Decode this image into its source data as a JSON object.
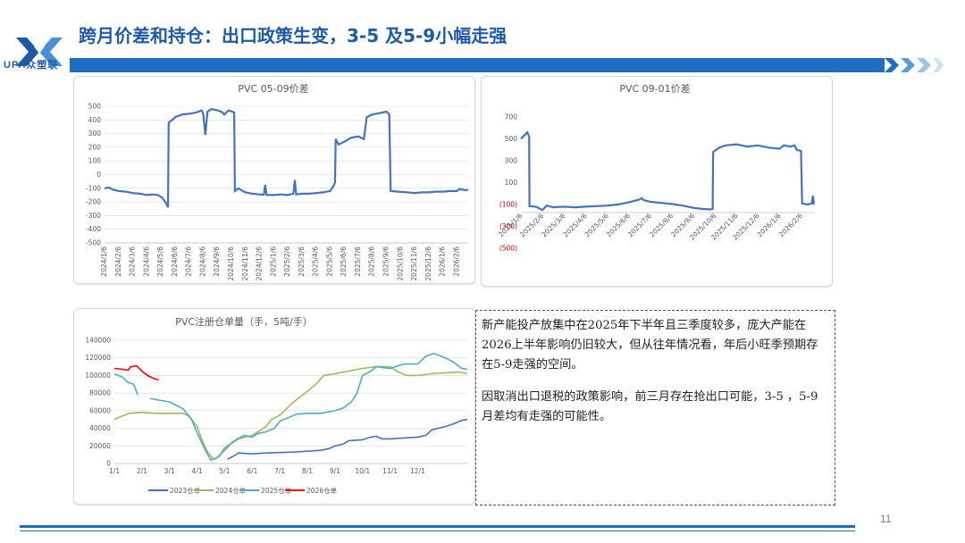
{
  "header": {
    "title": "跨月价差和持仓：出口政策生变，3-5 及5-9小幅走强",
    "logo_text": "UPA众塑联",
    "accent_color": "#1f6cc0"
  },
  "chart_data": [
    {
      "type": "line",
      "title": "PVC 05-09价差",
      "xlabel": "",
      "ylabel": "",
      "ylim": [
        -500,
        500
      ],
      "yticks": [
        "500",
        "400",
        "300",
        "200",
        "100",
        "0",
        "-100",
        "-200",
        "-300",
        "-400",
        "-500"
      ],
      "categories": [
        "2024/1/6",
        "2024/2/6",
        "2024/3/6",
        "2024/4/6",
        "2024/5/6",
        "2024/6/6",
        "2024/7/6",
        "2024/8/6",
        "2024/9/6",
        "2024/10/6",
        "2024/11/6",
        "2024/12/6",
        "2025/1/6",
        "2025/2/6",
        "2025/3/6",
        "2025/4/6",
        "2025/5/6",
        "2025/6/6",
        "2025/7/6",
        "2025/8/6",
        "2025/9/6",
        "2025/10/6",
        "2025/11/6",
        "2025/12/6",
        "2026/1/6",
        "2026/2/6"
      ],
      "series": [
        {
          "color": "#4472c4",
          "points": [
            [
              0,
              -100
            ],
            [
              0.3,
              -95
            ],
            [
              0.6,
              -110
            ],
            [
              1.0,
              -120
            ],
            [
              1.5,
              -125
            ],
            [
              2.0,
              -135
            ],
            [
              2.5,
              -140
            ],
            [
              3.0,
              -150
            ],
            [
              3.4,
              -145
            ],
            [
              3.8,
              -150
            ],
            [
              4.1,
              -170
            ],
            [
              4.4,
              -215
            ],
            [
              4.5,
              -240
            ],
            [
              4.55,
              380
            ],
            [
              4.8,
              400
            ],
            [
              5.0,
              420
            ],
            [
              5.5,
              440
            ],
            [
              6.0,
              445
            ],
            [
              6.5,
              455
            ],
            [
              6.9,
              470
            ],
            [
              7.0,
              445
            ],
            [
              7.15,
              290
            ],
            [
              7.3,
              460
            ],
            [
              7.6,
              480
            ],
            [
              8.0,
              470
            ],
            [
              8.3,
              460
            ],
            [
              8.5,
              440
            ],
            [
              8.8,
              470
            ],
            [
              9.2,
              455
            ],
            [
              9.25,
              -120
            ],
            [
              9.5,
              -100
            ],
            [
              9.8,
              -120
            ],
            [
              10.0,
              -130
            ],
            [
              10.5,
              -140
            ],
            [
              11.0,
              -145
            ],
            [
              11.3,
              -148
            ],
            [
              11.4,
              -75
            ],
            [
              11.5,
              -150
            ],
            [
              12.0,
              -150
            ],
            [
              12.5,
              -145
            ],
            [
              13.0,
              -150
            ],
            [
              13.4,
              -140
            ],
            [
              13.5,
              -40
            ],
            [
              13.6,
              -145
            ],
            [
              14.0,
              -140
            ],
            [
              14.5,
              -140
            ],
            [
              15.0,
              -135
            ],
            [
              15.5,
              -130
            ],
            [
              16.0,
              -120
            ],
            [
              16.2,
              -90
            ],
            [
              16.35,
              -60
            ],
            [
              16.4,
              260
            ],
            [
              16.6,
              220
            ],
            [
              17.0,
              240
            ],
            [
              17.5,
              270
            ],
            [
              18.0,
              280
            ],
            [
              18.4,
              260
            ],
            [
              18.6,
              420
            ],
            [
              19.0,
              440
            ],
            [
              19.5,
              450
            ],
            [
              20.0,
              460
            ],
            [
              20.2,
              440
            ],
            [
              20.3,
              -120
            ],
            [
              20.8,
              -125
            ],
            [
              21.5,
              -130
            ],
            [
              22.0,
              -135
            ],
            [
              22.5,
              -130
            ],
            [
              23.0,
              -130
            ],
            [
              23.5,
              -125
            ],
            [
              24.0,
              -125
            ],
            [
              24.5,
              -120
            ],
            [
              25.0,
              -120
            ],
            [
              25.2,
              -105
            ],
            [
              25.6,
              -115
            ],
            [
              25.8,
              -110
            ]
          ]
        }
      ]
    },
    {
      "type": "line",
      "title": "PVC 09-01价差",
      "xlabel": "",
      "ylabel": "",
      "ylim": [
        -500,
        700
      ],
      "yticks": [
        "700",
        "500",
        "300",
        "100",
        "(100)",
        "(300)",
        "(500)"
      ],
      "categories": [
        "2025/1/6",
        "2025/2/6",
        "2025/3/6",
        "2025/4/6",
        "2025/5/6",
        "2025/6/6",
        "2025/7/6",
        "2025/8/6",
        "2025/9/6",
        "2025/10/6",
        "2025/11/6",
        "2025/12/6",
        "2026/1/6",
        "2026/2/6"
      ],
      "series": [
        {
          "color": "#4472c4",
          "points": [
            [
              0,
              500
            ],
            [
              0.15,
              530
            ],
            [
              0.3,
              560
            ],
            [
              0.38,
              520
            ],
            [
              0.4,
              -115
            ],
            [
              0.7,
              -120
            ],
            [
              1.0,
              -150
            ],
            [
              1.2,
              -110
            ],
            [
              1.5,
              -125
            ],
            [
              2.0,
              -120
            ],
            [
              2.5,
              -125
            ],
            [
              3.0,
              -120
            ],
            [
              3.5,
              -115
            ],
            [
              4.0,
              -110
            ],
            [
              4.5,
              -100
            ],
            [
              5.0,
              -80
            ],
            [
              5.3,
              -65
            ],
            [
              5.5,
              -55
            ],
            [
              5.6,
              -40
            ],
            [
              5.7,
              -60
            ],
            [
              6.0,
              -75
            ],
            [
              6.5,
              -85
            ],
            [
              7.0,
              -95
            ],
            [
              7.5,
              -110
            ],
            [
              8.0,
              -130
            ],
            [
              8.4,
              -140
            ],
            [
              8.8,
              -145
            ],
            [
              8.9,
              -140
            ],
            [
              8.92,
              380
            ],
            [
              9.2,
              420
            ],
            [
              9.5,
              440
            ],
            [
              10.0,
              450
            ],
            [
              10.5,
              430
            ],
            [
              11.0,
              440
            ],
            [
              11.5,
              420
            ],
            [
              12.0,
              410
            ],
            [
              12.2,
              440
            ],
            [
              12.5,
              430
            ],
            [
              12.7,
              440
            ],
            [
              12.8,
              400
            ],
            [
              13.0,
              390
            ],
            [
              13.05,
              -90
            ],
            [
              13.3,
              -100
            ],
            [
              13.5,
              -90
            ],
            [
              13.55,
              -20
            ],
            [
              13.6,
              -100
            ]
          ]
        }
      ]
    },
    {
      "type": "line",
      "title": "PVC注册仓单量（手，5吨/手）",
      "xlabel": "",
      "ylabel": "",
      "ylim": [
        0,
        140000
      ],
      "yticks": [
        "140000",
        "120000",
        "100000",
        "80000",
        "60000",
        "40000",
        "20000",
        "0"
      ],
      "categories": [
        "1/1",
        "2/1",
        "3/1",
        "4/1",
        "5/1",
        "6/1",
        "7/1",
        "8/1",
        "9/1",
        "10/1",
        "11/1",
        "12/1"
      ],
      "legend_position": "bottom",
      "series": [
        {
          "name": "2023仓单",
          "color": "#4472c4",
          "points": [
            [
              4.1,
              5000
            ],
            [
              4.3,
              8000
            ],
            [
              4.5,
              12000
            ],
            [
              5.0,
              11000
            ],
            [
              5.5,
              12000
            ],
            [
              6.0,
              12500
            ],
            [
              6.5,
              13000
            ],
            [
              7.0,
              14000
            ],
            [
              7.5,
              15000
            ],
            [
              7.8,
              17000
            ],
            [
              8.0,
              20000
            ],
            [
              8.3,
              22000
            ],
            [
              8.5,
              26000
            ],
            [
              9.0,
              27000
            ],
            [
              9.3,
              30000
            ],
            [
              9.5,
              31000
            ],
            [
              9.7,
              28000
            ],
            [
              10.0,
              28000
            ],
            [
              10.5,
              29000
            ],
            [
              11.0,
              30000
            ],
            [
              11.3,
              32000
            ],
            [
              11.5,
              38000
            ],
            [
              12.0,
              42000
            ],
            [
              12.3,
              45000
            ],
            [
              12.6,
              49000
            ],
            [
              12.8,
              50000
            ]
          ]
        },
        {
          "name": "2024仓单",
          "color": "#9bbb59",
          "points": [
            [
              0,
              50000
            ],
            [
              0.2,
              53000
            ],
            [
              0.4,
              55000
            ],
            [
              0.5,
              57000
            ],
            [
              1.0,
              58000
            ],
            [
              1.5,
              57000
            ],
            [
              2.0,
              57000
            ],
            [
              2.5,
              57000
            ],
            [
              2.7,
              54000
            ],
            [
              3.0,
              42000
            ],
            [
              3.2,
              25000
            ],
            [
              3.4,
              12000
            ],
            [
              3.6,
              5000
            ],
            [
              3.8,
              8000
            ],
            [
              4.0,
              18000
            ],
            [
              4.5,
              28000
            ],
            [
              5.0,
              32000
            ],
            [
              5.5,
              42000
            ],
            [
              5.7,
              50000
            ],
            [
              6.0,
              55000
            ],
            [
              6.5,
              70000
            ],
            [
              7.0,
              82000
            ],
            [
              7.3,
              90000
            ],
            [
              7.6,
              100000
            ],
            [
              8.0,
              102000
            ],
            [
              8.5,
              105000
            ],
            [
              9.0,
              108000
            ],
            [
              9.5,
              110000
            ],
            [
              10.0,
              110000
            ],
            [
              10.3,
              104000
            ],
            [
              10.6,
              100000
            ],
            [
              11.0,
              100000
            ],
            [
              11.5,
              102000
            ],
            [
              12.0,
              103000
            ],
            [
              12.5,
              104000
            ],
            [
              12.8,
              102000
            ]
          ]
        },
        {
          "name": "2025仓单",
          "color": "#4bacc6",
          "points": [
            [
              0,
              102000
            ],
            [
              0.3,
              98000
            ],
            [
              0.5,
              92000
            ],
            [
              0.7,
              90000
            ],
            [
              0.8,
              82000
            ],
            [
              0.85,
              78000
            ],
            [
              1.3,
              null
            ],
            [
              1.3,
              74000
            ],
            [
              1.6,
              72000
            ],
            [
              2.0,
              70000
            ],
            [
              2.5,
              62000
            ],
            [
              2.8,
              50000
            ],
            [
              3.0,
              35000
            ],
            [
              3.3,
              15000
            ],
            [
              3.5,
              4000
            ],
            [
              3.7,
              6000
            ],
            [
              4.0,
              15000
            ],
            [
              4.3,
              25000
            ],
            [
              4.7,
              32000
            ],
            [
              5.0,
              30000
            ],
            [
              5.2,
              34000
            ],
            [
              5.5,
              36000
            ],
            [
              5.8,
              40000
            ],
            [
              6.0,
              48000
            ],
            [
              6.3,
              52000
            ],
            [
              6.6,
              56000
            ],
            [
              7.0,
              57000
            ],
            [
              7.5,
              57000
            ],
            [
              8.0,
              60000
            ],
            [
              8.3,
              63000
            ],
            [
              8.6,
              70000
            ],
            [
              8.8,
              80000
            ],
            [
              9.0,
              100000
            ],
            [
              9.3,
              105000
            ],
            [
              9.5,
              110000
            ],
            [
              10.0,
              108000
            ],
            [
              10.5,
              113000
            ],
            [
              11.0,
              113000
            ],
            [
              11.3,
              122000
            ],
            [
              11.6,
              125000
            ],
            [
              12.0,
              120000
            ],
            [
              12.3,
              115000
            ],
            [
              12.6,
              108000
            ],
            [
              12.8,
              107000
            ]
          ]
        },
        {
          "name": "2026仓单",
          "color": "#ff0000",
          "points": [
            [
              0,
              108000
            ],
            [
              0.3,
              107000
            ],
            [
              0.5,
              106000
            ],
            [
              0.6,
              110000
            ],
            [
              0.8,
              111000
            ],
            [
              1.0,
              105000
            ],
            [
              1.2,
              100000
            ],
            [
              1.4,
              97000
            ],
            [
              1.6,
              95000
            ]
          ]
        }
      ]
    }
  ],
  "note": {
    "paragraph1": "新产能投产放集中在2025年下半年且三季度较多，庞大产能在2026上半年影响仍旧较大，但从往年情况看，年后小旺季预期存在5-9走强的空间。",
    "paragraph2": "因取消出口退税的政策影响，前三月存在抢出口可能，3-5 ，5-9月差均有走强的可能性。"
  },
  "footer": {
    "page_number": "11"
  }
}
